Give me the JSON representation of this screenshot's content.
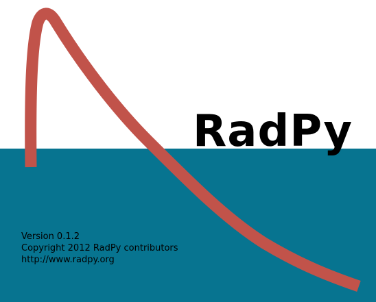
{
  "splash": {
    "title": "RadPy",
    "version": "Version 0.1.2",
    "copyright": "Copyright 2012 RadPy contributors",
    "url": "http://www.radpy.org"
  },
  "colors": {
    "background_top": "#ffffff",
    "background_bottom": "#077490",
    "curve": "#c1534a",
    "text": "#000000"
  }
}
